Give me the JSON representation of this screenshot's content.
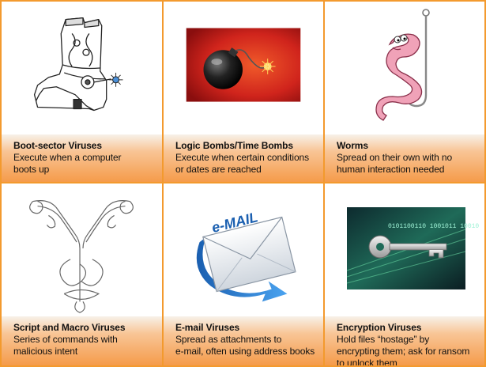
{
  "cards": [
    {
      "title": "Boot-sector Viruses",
      "description": "Execute when a computer\nboots up",
      "image": "cowboy-boot-icon"
    },
    {
      "title": "Logic Bombs/Time Bombs",
      "description": "Execute when certain  conditions\n or dates  are reached",
      "image": "bomb-icon"
    },
    {
      "title": "Worms",
      "description": "Spread on their own with no\nhuman interaction needed",
      "image": "worm-on-hook-icon"
    },
    {
      "title": "Script and Macro Viruses",
      "description": "Series of commands with\nmalicious intent",
      "image": "ornamental-letter-y-icon"
    },
    {
      "title": "E-mail Viruses",
      "description": "Spread as attachments to\ne-mail, often using address books",
      "image": "email-envelope-icon",
      "image_text": "e-MAIL"
    },
    {
      "title": "Encryption Viruses",
      "description": "Hold files “hostage” by\nencrypting them; ask for  ransom\nto unlock them",
      "image": "key-binary-icon",
      "image_text": "0101100110 1001011 10010"
    }
  ],
  "colors": {
    "border": "#f39a2e",
    "caption_top": "#f7f1e9",
    "caption_bottom": "#f59b4a"
  }
}
